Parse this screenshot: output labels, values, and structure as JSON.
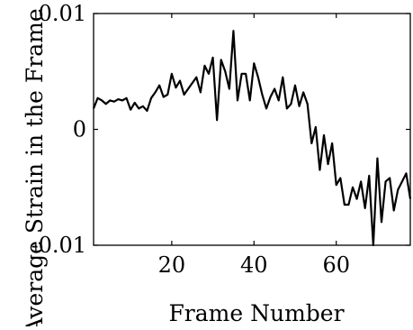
{
  "chart_data": {
    "type": "line",
    "title": "",
    "xlabel": "Frame Number",
    "ylabel": "Average Strain in the Frame",
    "xlim": [
      1,
      78
    ],
    "ylim": [
      -0.01,
      0.01
    ],
    "xticks": [
      20,
      40,
      60
    ],
    "xtick_labels": [
      "20",
      "40",
      "60"
    ],
    "yticks": [
      -0.01,
      0,
      0.01
    ],
    "ytick_labels": [
      "-0.01",
      "0",
      "0.01"
    ],
    "grid": false,
    "legend": "none",
    "line_color": "#000000",
    "series": [
      {
        "x": [
          1,
          2,
          3,
          4,
          5,
          6,
          7,
          8,
          9,
          10,
          11,
          12,
          13,
          14,
          15,
          16,
          17,
          18,
          19,
          20,
          21,
          22,
          23,
          24,
          25,
          26,
          27,
          28,
          29,
          30,
          31,
          32,
          33,
          34,
          35,
          36,
          37,
          38,
          39,
          40,
          41,
          42,
          43,
          44,
          45,
          46,
          47,
          48,
          49,
          50,
          51,
          52,
          53,
          54,
          55,
          56,
          57,
          58,
          59,
          60,
          61,
          62,
          63,
          64,
          65,
          66,
          67,
          68,
          69,
          70,
          71,
          72,
          73,
          74,
          75,
          76,
          77,
          78
        ],
        "y": [
          0.0018,
          0.0027,
          0.0025,
          0.0022,
          0.0025,
          0.0024,
          0.0026,
          0.0025,
          0.0027,
          0.0017,
          0.0023,
          0.0018,
          0.002,
          0.0016,
          0.0027,
          0.0032,
          0.0038,
          0.0028,
          0.003,
          0.0048,
          0.0036,
          0.0042,
          0.003,
          0.0035,
          0.004,
          0.0045,
          0.0032,
          0.0055,
          0.0048,
          0.0062,
          0.0008,
          0.006,
          0.005,
          0.0035,
          0.0085,
          0.0025,
          0.0048,
          0.0048,
          0.0025,
          0.0057,
          0.0045,
          0.003,
          0.0018,
          0.0028,
          0.0035,
          0.0025,
          0.0045,
          0.0018,
          0.0022,
          0.0038,
          0.002,
          0.0032,
          0.0022,
          -0.0012,
          0.0002,
          -0.0035,
          -0.0005,
          -0.003,
          -0.0012,
          -0.0048,
          -0.0042,
          -0.0065,
          -0.0065,
          -0.005,
          -0.006,
          -0.0045,
          -0.0068,
          -0.004,
          -0.01,
          -0.0025,
          -0.008,
          -0.0045,
          -0.0042,
          -0.007,
          -0.0052,
          -0.0045,
          -0.0038,
          -0.006
        ]
      }
    ]
  }
}
